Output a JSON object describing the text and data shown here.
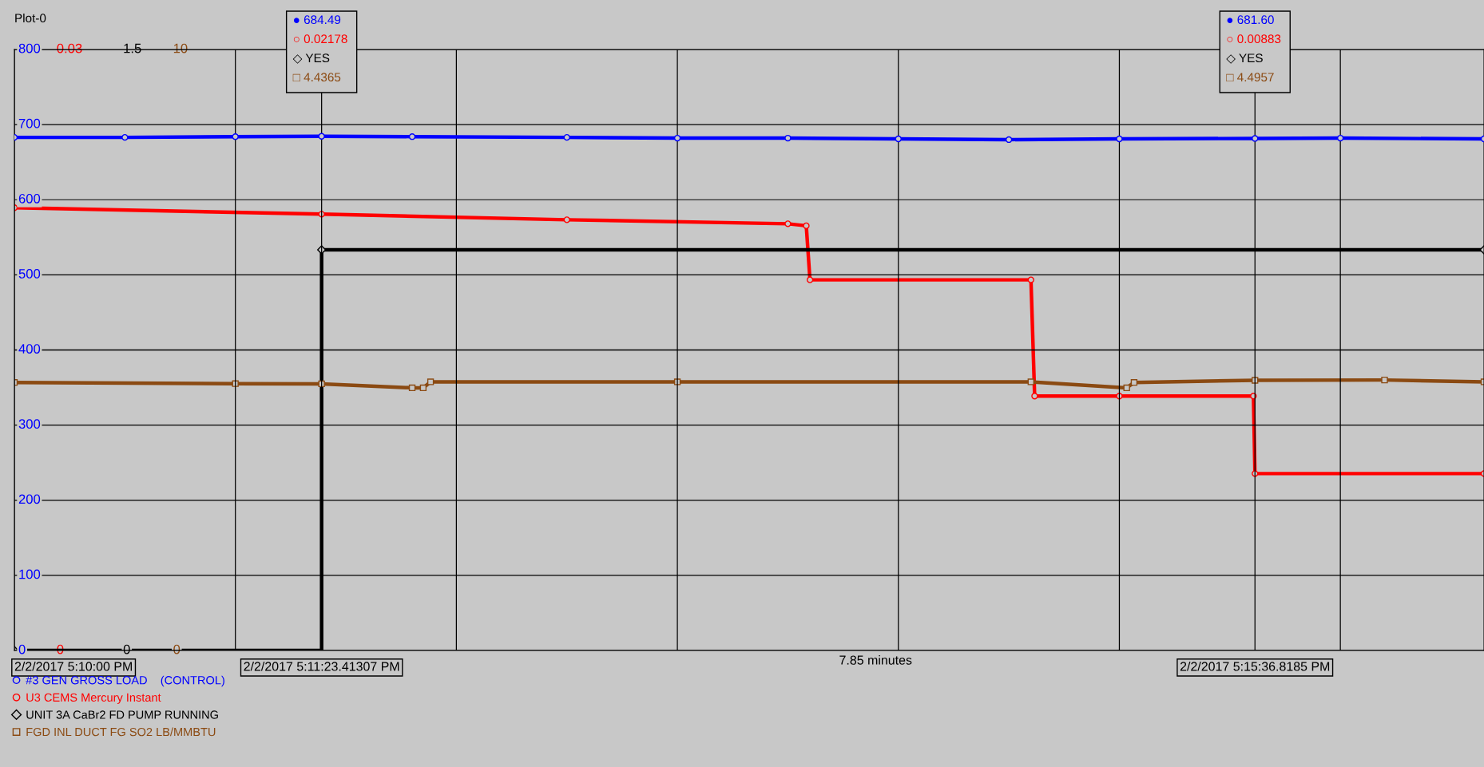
{
  "chart_data": [
    {
      "type": "line",
      "title": "Plot-0",
      "xlabel": "7.85 minutes",
      "xlim": [
        "2017-02-02T17:10:00",
        "2017-02-02T17:16:39"
      ],
      "xticks": [
        {
          "value": "2017-02-02T17:10:00",
          "label": "2/2/2017 5:10:00 PM"
        },
        {
          "value": "2017-02-02T17:11:00",
          "label": null
        },
        {
          "value": "2017-02-02T17:11:23.413",
          "label": "2/2/2017 5:11:23.41307 PM"
        },
        {
          "value": "2017-02-02T17:12:00",
          "label": null
        },
        {
          "value": "2017-02-02T17:13:00",
          "label": null
        },
        {
          "value": "2017-02-02T17:14:00",
          "label": null
        },
        {
          "value": "2017-02-02T17:15:00",
          "label": null
        },
        {
          "value": "2017-02-02T17:15:36.818",
          "label": "2/2/2017 5:15:36.8185 PM"
        },
        {
          "value": "2017-02-02T17:16:00",
          "label": null
        }
      ],
      "ylim": [
        0,
        800
      ],
      "yticks": [
        0,
        100,
        200,
        300,
        400,
        500,
        600,
        700,
        800
      ],
      "y2lim": [
        0,
        0.03
      ],
      "y2ticks": [
        0,
        0.03
      ],
      "y3lim": [
        0,
        1.5
      ],
      "y3ticks": [
        0,
        1.5
      ],
      "grid": true,
      "legend": "bottom left",
      "line_style": "solid",
      "series": [
        {
          "name": "#3 GEN GROSS LOAD    (CONTROL)",
          "color": "#0000ff",
          "axis": "y",
          "marker": "circle",
          "x": [
            "2017-02-02T17:10:00",
            "2017-02-02T17:10:30",
            "2017-02-02T17:11:00",
            "2017-02-02T17:11:23.413",
            "2017-02-02T17:11:48",
            "2017-02-02T17:12:30",
            "2017-02-02T17:13:00",
            "2017-02-02T17:13:30",
            "2017-02-02T17:14:00",
            "2017-02-02T17:14:30",
            "2017-02-02T17:15:00",
            "2017-02-02T17:15:36.818",
            "2017-02-02T17:16:00",
            "2017-02-02T17:16:39"
          ],
          "values": [
            683,
            683,
            684,
            684.49,
            684,
            683,
            682,
            682,
            681,
            680,
            681,
            681.6,
            682,
            681
          ]
        },
        {
          "name": "U3 CEMS Mercury Instant",
          "color": "#ff0000",
          "axis": "y2",
          "marker": "circle",
          "x": [
            "2017-02-02T17:10:00",
            "2017-02-02T17:11:23.413",
            "2017-02-02T17:12:30",
            "2017-02-02T17:13:30",
            "2017-02-02T17:13:35",
            "2017-02-02T17:13:36",
            "2017-02-02T17:14:36",
            "2017-02-02T17:14:37",
            "2017-02-02T17:15:00",
            "2017-02-02T17:15:36.4",
            "2017-02-02T17:15:36.818",
            "2017-02-02T17:16:39"
          ],
          "values": [
            0.0221,
            0.02178,
            0.0215,
            0.0213,
            0.0212,
            0.0185,
            0.0185,
            0.0127,
            0.0127,
            0.0127,
            0.00883,
            0.00883
          ]
        },
        {
          "name": "UNIT 3A CaBr2 FD PUMP RUNNING",
          "color": "#000000",
          "axis": "y3",
          "type": "step",
          "marker": "diamond",
          "x": [
            "2017-02-02T17:10:00",
            "2017-02-02T17:11:23.413",
            "2017-02-02T17:16:39"
          ],
          "values": [
            0,
            1,
            1
          ]
        }
      ],
      "annotations": [
        "● 684.49",
        "○ 0.02178",
        "◇ YES",
        "● 681.60",
        "○ 0.00883",
        "◇ YES"
      ]
    },
    {
      "type": "line",
      "tick_labels": "y",
      "legend": "bottom left",
      "xlim": [
        "2017-02-02T17:10:00",
        "2017-02-02T17:16:39"
      ],
      "ylim": [
        0,
        10
      ],
      "yticks": [
        0,
        10
      ],
      "series": [
        {
          "name": "FGD INL DUCT FG SO2 LB/MMBTU",
          "color": "#8b4a12",
          "marker": "square",
          "x": [
            "2017-02-02T17:10:00",
            "2017-02-02T17:11:00",
            "2017-02-02T17:11:23.413",
            "2017-02-02T17:11:48",
            "2017-02-02T17:11:51",
            "2017-02-02T17:11:53",
            "2017-02-02T17:13:00",
            "2017-02-02T17:14:36",
            "2017-02-02T17:15:02",
            "2017-02-02T17:15:04",
            "2017-02-02T17:15:36.818",
            "2017-02-02T17:16:12",
            "2017-02-02T17:16:39"
          ],
          "values": [
            4.46,
            4.44,
            4.4365,
            4.37,
            4.37,
            4.47,
            4.47,
            4.47,
            4.37,
            4.46,
            4.4957,
            4.5,
            4.47
          ]
        }
      ],
      "annotations": [
        "□ 4.4365",
        "□ 4.4957"
      ]
    }
  ]
}
